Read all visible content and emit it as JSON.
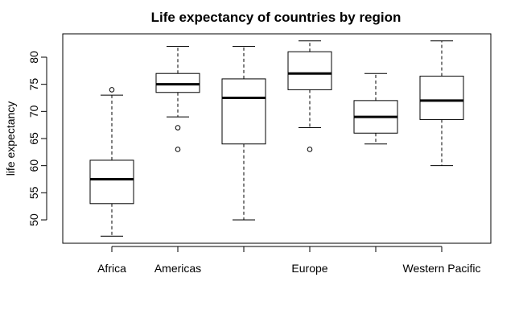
{
  "chart_data": {
    "type": "boxplot",
    "title": "Life expectancy of countries by region",
    "xlabel": "",
    "ylabel": "life expectancy",
    "ylim": [
      45,
      84
    ],
    "yticks": [
      50,
      55,
      60,
      65,
      70,
      75,
      80
    ],
    "categories": [
      "Africa",
      "Americas",
      "",
      "Europe",
      "",
      "Western Pacific"
    ],
    "boxes": [
      {
        "category": "Africa",
        "whisker_low": 47,
        "q1": 53,
        "median": 57.5,
        "q3": 61,
        "whisker_high": 73,
        "outliers": [
          74
        ]
      },
      {
        "category": "Americas",
        "whisker_low": 69,
        "q1": 73.5,
        "median": 75,
        "q3": 77,
        "whisker_high": 82,
        "outliers": [
          67,
          63
        ]
      },
      {
        "category": "",
        "whisker_low": 50,
        "q1": 64,
        "median": 72.5,
        "q3": 76,
        "whisker_high": 82,
        "outliers": []
      },
      {
        "category": "Europe",
        "whisker_low": 67,
        "q1": 74,
        "median": 77,
        "q3": 81,
        "whisker_high": 83,
        "outliers": [
          63
        ]
      },
      {
        "category": "",
        "whisker_low": 64,
        "q1": 66,
        "median": 69,
        "q3": 72,
        "whisker_high": 77,
        "outliers": []
      },
      {
        "category": "Western Pacific",
        "whisker_low": 60,
        "q1": 68.5,
        "median": 72,
        "q3": 76.5,
        "whisker_high": 83,
        "outliers": []
      }
    ],
    "grid": false,
    "legend": "none"
  }
}
